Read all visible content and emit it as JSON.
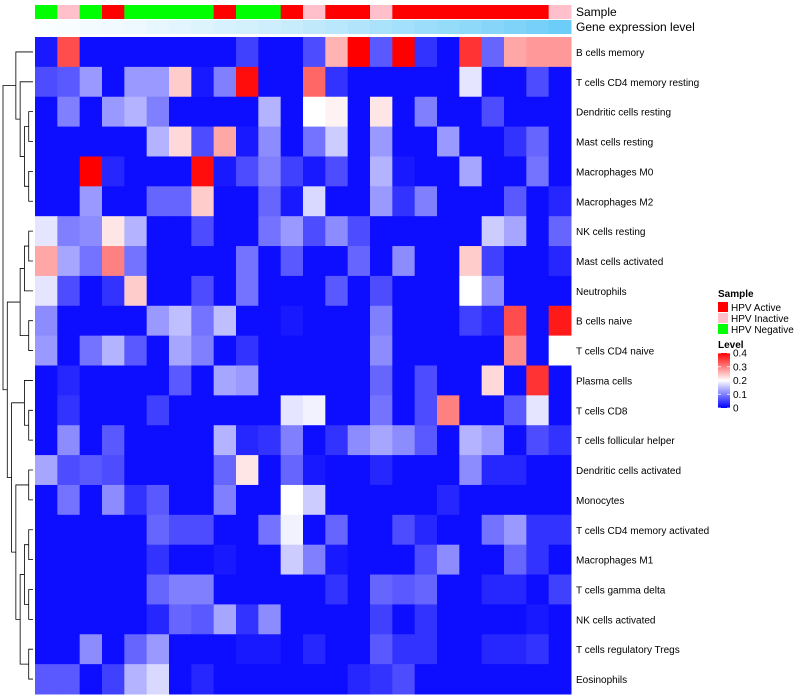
{
  "chart_data": {
    "type": "heatmap",
    "annotation_labels": [
      "Sample",
      "Gene expression level"
    ],
    "sample_groups": [
      "Negative",
      "Inactive",
      "Negative",
      "Active",
      "Negative",
      "Negative",
      "Negative",
      "Negative",
      "Active",
      "Negative",
      "Negative",
      "Active",
      "Inactive",
      "Active",
      "Active",
      "Inactive",
      "Active",
      "Active",
      "Active",
      "Active",
      "Active",
      "Active",
      "Active",
      "Inactive"
    ],
    "expression_gradient": [
      0.02,
      0.04,
      0.06,
      0.08,
      0.1,
      0.13,
      0.16,
      0.19,
      0.22,
      0.25,
      0.28,
      0.32,
      0.36,
      0.4,
      0.44,
      0.48,
      0.52,
      0.56,
      0.6,
      0.64,
      0.68,
      0.73,
      0.78,
      0.84
    ],
    "rows": [
      "B cells memory",
      "T cells CD4 memory resting",
      "Dendritic cells resting",
      "Mast cells resting",
      "Macrophages M0",
      "Macrophages M2",
      "NK cells resting",
      "Mast cells activated",
      "Neutrophils",
      "B cells naive",
      "T cells CD4 naive",
      "Plasma cells",
      "T cells CD8",
      "T cells follicular helper",
      "Dendritic cells activated",
      "Monocytes",
      "T cells CD4 memory activated",
      "Macrophages M1",
      "T cells gamma delta",
      "NK cells activated",
      "T cells regulatory  Tregs",
      "Eosinophils"
    ],
    "values": [
      [
        0.02,
        0.34,
        0.01,
        0.01,
        0.01,
        0.01,
        0.01,
        0.01,
        0.01,
        0.05,
        0.01,
        0.01,
        0.06,
        0.26,
        0.4,
        0.07,
        0.4,
        0.04,
        0.01,
        0.36,
        0.08,
        0.27,
        0.28,
        0.28
      ],
      [
        0.06,
        0.07,
        0.12,
        0.01,
        0.12,
        0.12,
        0.24,
        0.02,
        0.1,
        0.39,
        0.01,
        0.01,
        0.32,
        0.04,
        0.01,
        0.01,
        0.01,
        0.01,
        0.01,
        0.18,
        0.01,
        0.01,
        0.06,
        0.01
      ],
      [
        0.01,
        0.1,
        0.01,
        0.12,
        0.14,
        0.1,
        0.01,
        0.01,
        0.01,
        0.01,
        0.14,
        0.01,
        0.2,
        0.21,
        0.01,
        0.22,
        0.01,
        0.1,
        0.01,
        0.01,
        0.06,
        0.01,
        0.01,
        0.01
      ],
      [
        0.01,
        0.01,
        0.01,
        0.01,
        0.01,
        0.14,
        0.23,
        0.06,
        0.27,
        0.02,
        0.11,
        0.01,
        0.09,
        0.16,
        0.01,
        0.12,
        0.01,
        0.01,
        0.12,
        0.01,
        0.01,
        0.04,
        0.08,
        0.01
      ],
      [
        0.01,
        0.01,
        0.4,
        0.03,
        0.01,
        0.01,
        0.01,
        0.39,
        0.02,
        0.06,
        0.1,
        0.05,
        0.02,
        0.06,
        0.01,
        0.14,
        0.02,
        0.01,
        0.01,
        0.13,
        0.01,
        0.01,
        0.09,
        0.01
      ],
      [
        0.01,
        0.01,
        0.12,
        0.01,
        0.01,
        0.08,
        0.08,
        0.24,
        0.01,
        0.01,
        0.08,
        0.02,
        0.17,
        0.01,
        0.01,
        0.12,
        0.04,
        0.1,
        0.01,
        0.01,
        0.01,
        0.07,
        0.01,
        0.03
      ],
      [
        0.18,
        0.1,
        0.11,
        0.22,
        0.14,
        0.01,
        0.01,
        0.06,
        0.01,
        0.01,
        0.09,
        0.12,
        0.06,
        0.11,
        0.06,
        0.01,
        0.01,
        0.01,
        0.01,
        0.01,
        0.16,
        0.13,
        0.01,
        0.08
      ],
      [
        0.27,
        0.13,
        0.09,
        0.3,
        0.09,
        0.01,
        0.01,
        0.01,
        0.01,
        0.09,
        0.01,
        0.07,
        0.01,
        0.01,
        0.08,
        0.01,
        0.11,
        0.01,
        0.01,
        0.24,
        0.05,
        0.01,
        0.01,
        0.03
      ],
      [
        0.18,
        0.06,
        0.01,
        0.04,
        0.24,
        0.01,
        0.01,
        0.06,
        0.01,
        0.09,
        0.01,
        0.01,
        0.01,
        0.07,
        0.01,
        0.06,
        0.01,
        0.01,
        0.01,
        0.2,
        0.11,
        0.01,
        0.01,
        0.01
      ],
      [
        0.11,
        0.01,
        0.01,
        0.01,
        0.01,
        0.12,
        0.15,
        0.09,
        0.15,
        0.01,
        0.01,
        0.02,
        0.01,
        0.01,
        0.01,
        0.1,
        0.01,
        0.01,
        0.01,
        0.05,
        0.03,
        0.34,
        0.01,
        0.38
      ],
      [
        0.12,
        0.01,
        0.09,
        0.14,
        0.07,
        0.01,
        0.13,
        0.1,
        0.01,
        0.04,
        0.01,
        0.01,
        0.01,
        0.01,
        0.01,
        0.11,
        0.01,
        0.01,
        0.01,
        0.01,
        0.01,
        0.29,
        0.01,
        0.2
      ],
      [
        0.01,
        0.03,
        0.01,
        0.01,
        0.01,
        0.01,
        0.07,
        0.01,
        0.13,
        0.12,
        0.01,
        0.01,
        0.01,
        0.01,
        0.01,
        0.08,
        0.01,
        0.06,
        0.01,
        0.01,
        0.23,
        0.01,
        0.36,
        0.01
      ],
      [
        0.01,
        0.04,
        0.01,
        0.01,
        0.01,
        0.05,
        0.01,
        0.01,
        0.01,
        0.01,
        0.01,
        0.18,
        0.19,
        0.01,
        0.01,
        0.09,
        0.01,
        0.06,
        0.3,
        0.01,
        0.01,
        0.07,
        0.18,
        0.01
      ],
      [
        0.01,
        0.11,
        0.01,
        0.07,
        0.01,
        0.01,
        0.01,
        0.01,
        0.14,
        0.03,
        0.04,
        0.1,
        0.01,
        0.04,
        0.11,
        0.13,
        0.11,
        0.07,
        0.01,
        0.14,
        0.12,
        0.01,
        0.06,
        0.04
      ],
      [
        0.13,
        0.06,
        0.07,
        0.06,
        0.01,
        0.01,
        0.01,
        0.01,
        0.08,
        0.22,
        0.01,
        0.08,
        0.02,
        0.01,
        0.01,
        0.03,
        0.01,
        0.01,
        0.01,
        0.11,
        0.03,
        0.03,
        0.01,
        0.01
      ],
      [
        0.01,
        0.09,
        0.01,
        0.11,
        0.04,
        0.07,
        0.01,
        0.01,
        0.1,
        0.01,
        0.01,
        0.2,
        0.16,
        0.01,
        0.01,
        0.01,
        0.01,
        0.01,
        0.03,
        0.01,
        0.01,
        0.01,
        0.01,
        0.01
      ],
      [
        0.01,
        0.01,
        0.01,
        0.01,
        0.01,
        0.08,
        0.06,
        0.06,
        0.01,
        0.01,
        0.09,
        0.19,
        0.01,
        0.08,
        0.01,
        0.01,
        0.06,
        0.03,
        0.01,
        0.01,
        0.09,
        0.12,
        0.04,
        0.04
      ],
      [
        0.01,
        0.01,
        0.01,
        0.01,
        0.01,
        0.04,
        0.01,
        0.01,
        0.02,
        0.01,
        0.01,
        0.16,
        0.1,
        0.02,
        0.01,
        0.01,
        0.01,
        0.06,
        0.11,
        0.01,
        0.01,
        0.08,
        0.04,
        0.01
      ],
      [
        0.01,
        0.01,
        0.01,
        0.01,
        0.01,
        0.08,
        0.1,
        0.1,
        0.01,
        0.01,
        0.01,
        0.01,
        0.01,
        0.04,
        0.01,
        0.08,
        0.07,
        0.08,
        0.01,
        0.01,
        0.03,
        0.03,
        0.01,
        0.05
      ],
      [
        0.01,
        0.01,
        0.01,
        0.01,
        0.01,
        0.03,
        0.08,
        0.07,
        0.13,
        0.04,
        0.11,
        0.01,
        0.01,
        0.01,
        0.01,
        0.05,
        0.01,
        0.04,
        0.01,
        0.01,
        0.01,
        0.01,
        0.02,
        0.01
      ],
      [
        0.01,
        0.01,
        0.11,
        0.01,
        0.08,
        0.12,
        0.01,
        0.01,
        0.01,
        0.02,
        0.02,
        0.01,
        0.03,
        0.01,
        0.01,
        0.07,
        0.04,
        0.04,
        0.01,
        0.01,
        0.03,
        0.03,
        0.04,
        0.01
      ],
      [
        0.07,
        0.07,
        0.01,
        0.05,
        0.14,
        0.17,
        0.01,
        0.03,
        0.01,
        0.01,
        0.01,
        0.01,
        0.01,
        0.01,
        0.03,
        0.04,
        0.06,
        0.01,
        0.01,
        0.01,
        0.01,
        0.01,
        0.01,
        0.01
      ]
    ],
    "legend_sample": {
      "title": "Sample",
      "items": [
        {
          "key": "Active",
          "label": "HPV Active",
          "color": "#ff0000"
        },
        {
          "key": "Inactive",
          "label": "HPV Inactive",
          "color": "#ffc0cb"
        },
        {
          "key": "Negative",
          "label": "HPV Negative",
          "color": "#00ff00"
        }
      ]
    },
    "legend_level": {
      "title": "Level",
      "ticks": [
        "0.4",
        "0.3",
        "0.2",
        "0.1",
        "0"
      ],
      "tick_values": [
        0.4,
        0.3,
        0.2,
        0.1,
        0
      ],
      "range": [
        0,
        0.4
      ]
    },
    "colors": {
      "low": "#0000ff",
      "mid": "#ffffff",
      "high": "#ff0000",
      "mid_value": 0.2,
      "expr_low": "#ffffff",
      "expr_high": "#4fc3f7"
    }
  }
}
